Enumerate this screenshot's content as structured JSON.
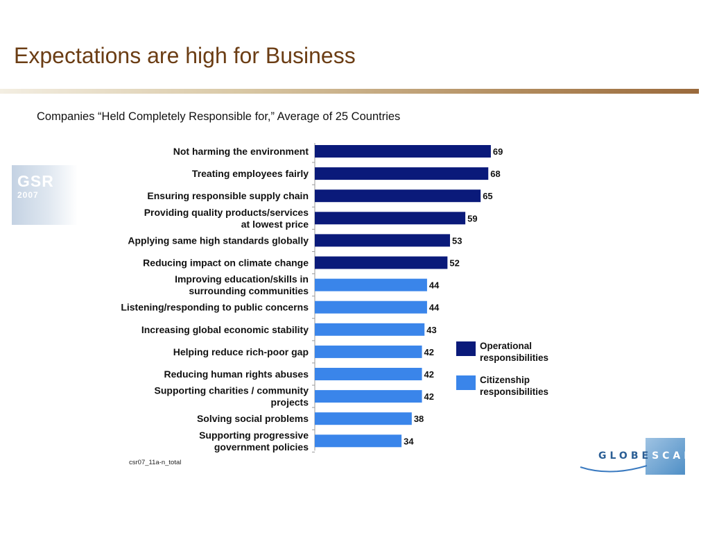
{
  "slide": {
    "title": "Expectations are high for Business",
    "subtitle": "Companies “Held Completely Responsible for,” Average of 25 Countries",
    "source_note": "csr07_11a-n_total"
  },
  "gsr_logo": {
    "text": "GSR",
    "year": "2007"
  },
  "globescan_logo": {
    "text_a": "GLOBE",
    "text_b": "SCAN"
  },
  "colors": {
    "title": "#6b3d14",
    "operational": "#0a1a7a",
    "citizenship": "#3a85ea"
  },
  "chart_data": {
    "type": "bar",
    "orientation": "horizontal",
    "categories": [
      [
        "Not harming the environment"
      ],
      [
        "Treating employees fairly"
      ],
      [
        "Ensuring responsible supply chain"
      ],
      [
        "Providing quality products/services",
        "at lowest price"
      ],
      [
        "Applying same high standards globally"
      ],
      [
        "Reducing impact on climate change"
      ],
      [
        "Improving education/skills in",
        "surrounding communities"
      ],
      [
        "Listening/responding to public concerns"
      ],
      [
        "Increasing global economic stability"
      ],
      [
        "Helping reduce rich-poor gap"
      ],
      [
        "Reducing human rights abuses"
      ],
      [
        "Supporting charities / community",
        "projects"
      ],
      [
        "Solving social problems"
      ],
      [
        "Supporting progressive",
        "government policies"
      ]
    ],
    "values": [
      69,
      68,
      65,
      59,
      53,
      52,
      44,
      44,
      43,
      42,
      42,
      42,
      38,
      34
    ],
    "groups": [
      "operational",
      "operational",
      "operational",
      "operational",
      "operational",
      "operational",
      "citizenship",
      "citizenship",
      "citizenship",
      "citizenship",
      "citizenship",
      "citizenship",
      "citizenship",
      "citizenship"
    ],
    "legend": [
      {
        "key": "operational",
        "lines": [
          "Operational",
          "responsibilities"
        ]
      },
      {
        "key": "citizenship",
        "lines": [
          "Citizenship",
          "responsibilities"
        ]
      }
    ],
    "xlim": [
      0,
      100
    ]
  }
}
